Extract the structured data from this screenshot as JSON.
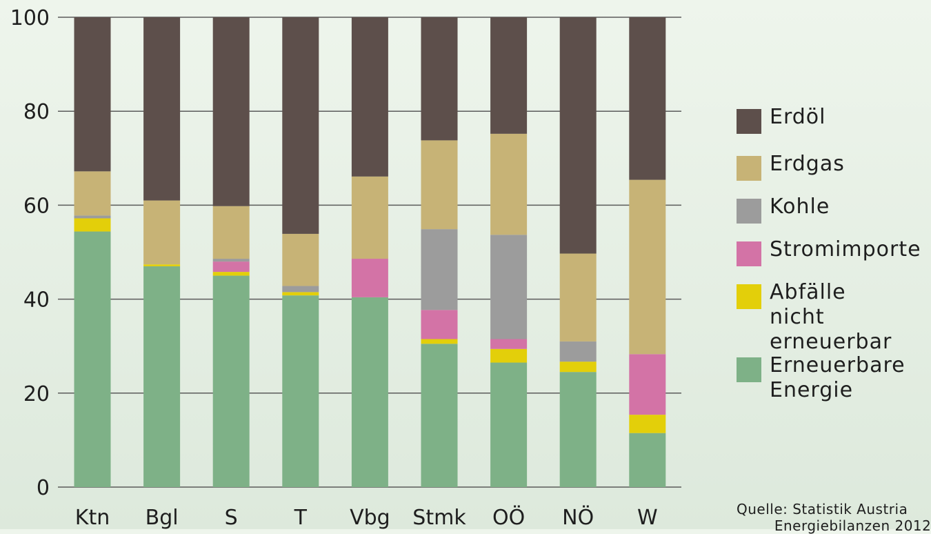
{
  "chart_data": {
    "type": "bar",
    "stacked": true,
    "categories": [
      "Ktn",
      "Bgl",
      "S",
      "T",
      "Vbg",
      "Stmk",
      "OÖ",
      "NÖ",
      "W"
    ],
    "ylim": [
      0,
      100
    ],
    "yticks": [
      0,
      20,
      40,
      60,
      80,
      100
    ],
    "ytick_labels": [
      "0",
      "20",
      "40",
      "60",
      "80",
      "100"
    ],
    "grid": "horizontal",
    "legend_position": "right",
    "series": [
      {
        "name": "Erneuerbare Energie",
        "color": "#7eb187",
        "values": [
          54.4,
          47.0,
          45.0,
          40.8,
          40.4,
          30.5,
          26.5,
          24.5,
          11.5
        ]
      },
      {
        "name": "Abfälle nicht erneuerbar",
        "color": "#e3cf0a",
        "values": [
          2.8,
          0.4,
          0.8,
          0.7,
          0.0,
          1.0,
          2.9,
          2.2,
          3.9
        ]
      },
      {
        "name": "Stromimporte",
        "color": "#d373a6",
        "values": [
          0.0,
          0.0,
          2.2,
          0.0,
          8.2,
          6.2,
          2.1,
          0.0,
          12.9
        ]
      },
      {
        "name": "Kohle",
        "color": "#9c9c9c",
        "values": [
          0.6,
          0.0,
          0.6,
          1.3,
          0.0,
          17.2,
          22.2,
          4.3,
          0.0
        ]
      },
      {
        "name": "Erdgas",
        "color": "#c7b376",
        "values": [
          9.4,
          13.6,
          11.2,
          11.1,
          17.5,
          18.9,
          21.5,
          18.7,
          37.1
        ]
      },
      {
        "name": "Erdöl",
        "color": "#5d4f4b",
        "values": [
          32.8,
          39.0,
          40.2,
          46.1,
          33.9,
          26.2,
          24.8,
          50.3,
          34.6
        ]
      }
    ],
    "legend": [
      {
        "label": "Erdöl",
        "color": "#5d4f4b"
      },
      {
        "label": "Erdgas",
        "color": "#c7b376"
      },
      {
        "label": "Kohle",
        "color": "#9c9c9c"
      },
      {
        "label": "Stromimporte",
        "color": "#d373a6"
      },
      {
        "label": "Abfälle nicht\nerneuerbar",
        "color": "#e3cf0a"
      },
      {
        "label": "Erneuerbare\nEnergie",
        "color": "#7eb187"
      }
    ],
    "source": "Quelle: Statistik Austria\n        Energiebilanzen 2012"
  },
  "colors": {
    "grid": "#5a5a5a",
    "text": "#1e1e1e"
  }
}
